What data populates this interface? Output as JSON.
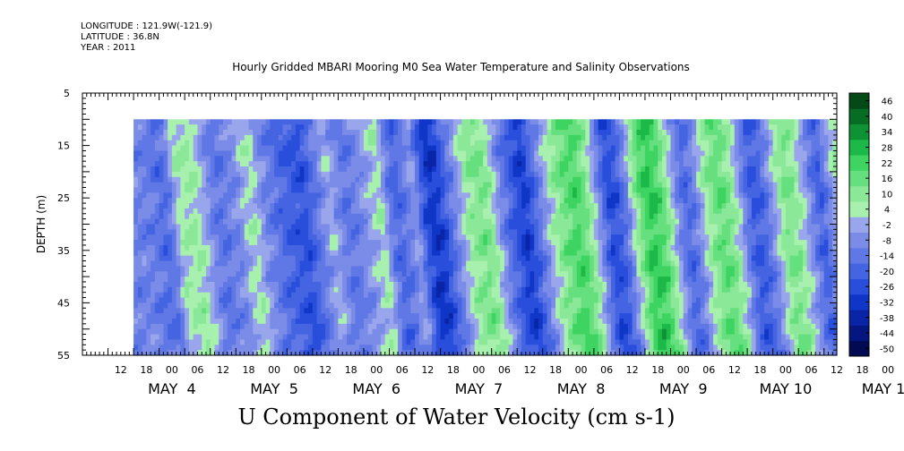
{
  "header": {
    "longitude": "LONGITUDE : 121.9W(-121.9)",
    "latitude": "LATITUDE : 36.8N",
    "year": "YEAR : 2011"
  },
  "chart_data": {
    "type": "heatmap",
    "title": "Hourly Gridded MBARI Mooring M0 Sea Water Temperature and Salinity Observations",
    "xlabel": "U Component of Water Velocity (cm s-1)",
    "ylabel": "DEPTH (m)",
    "ylim": [
      55,
      5
    ],
    "y_ticks": [
      5,
      15,
      25,
      35,
      45,
      55
    ],
    "x_range_hours": [
      "2011-05-04 03:00",
      "2011-05-11 12:00"
    ],
    "x_hour_ticks": [
      "12",
      "18",
      "00",
      "06",
      "12",
      "18",
      "00",
      "06",
      "12",
      "18",
      "00",
      "06",
      "12",
      "18",
      "00",
      "06",
      "12",
      "18",
      "00",
      "06",
      "12",
      "18",
      "00",
      "06",
      "12",
      "18",
      "00",
      "06",
      "12",
      "18",
      "00",
      "06"
    ],
    "x_day_labels": [
      "MAY  4",
      "MAY  5",
      "MAY  6",
      "MAY  7",
      "MAY  8",
      "MAY  9",
      "MAY 10",
      "MAY 11"
    ],
    "data_depth_range": [
      10,
      55
    ],
    "data_time_start": "2011-05-04 15:00",
    "colorbar": {
      "levels": [
        -50,
        -44,
        -38,
        -32,
        -26,
        -20,
        -14,
        -8,
        -2,
        4,
        10,
        16,
        22,
        28,
        34,
        40,
        46
      ],
      "tick_labels": [
        "46",
        "40",
        "34",
        "28",
        "22",
        "16",
        "10",
        "4",
        "-2",
        "-8",
        "-14",
        "-20",
        "-26",
        "-32",
        "-38",
        "-44",
        "-50"
      ],
      "colors": [
        "#020a52",
        "#061680",
        "#0a24a8",
        "#1036c8",
        "#2a4edc",
        "#4464e2",
        "#6078e6",
        "#7b8ce8",
        "#99a6ec",
        "#a8f0ae",
        "#8ae898",
        "#66e07e",
        "#3ed462",
        "#1cb848",
        "#0e9234",
        "#076c24",
        "#034a16"
      ]
    },
    "velocity_profile_by_hour": [
      -8,
      -10,
      -14,
      -12,
      6,
      8,
      10,
      2,
      -8,
      -12,
      -8,
      -6,
      4,
      6,
      -4,
      -10,
      -14,
      -18,
      -20,
      -22,
      -14,
      -6,
      2,
      -6,
      -12,
      -8,
      -4,
      2,
      8,
      -10,
      -16,
      -10,
      -2,
      -20,
      -30,
      -26,
      -14,
      -4,
      8,
      14,
      16,
      10,
      -4,
      -14,
      -22,
      -28,
      -18,
      -6,
      6,
      14,
      20,
      24,
      18,
      6,
      -10,
      -24,
      -20,
      -8,
      10,
      24,
      28,
      22,
      10,
      -6,
      -16,
      -10,
      4,
      14,
      20,
      16,
      6,
      -10,
      -20,
      -16,
      -6,
      8,
      16,
      12,
      2,
      -10,
      -18,
      -6,
      8,
      14
    ]
  }
}
